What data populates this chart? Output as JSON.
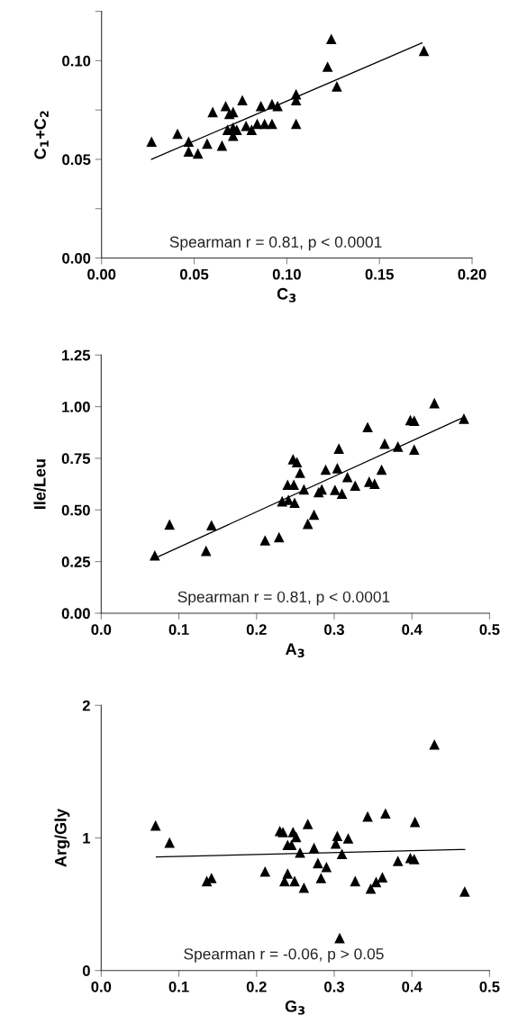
{
  "chart_data": [
    {
      "type": "scatter",
      "xlabel": "C$_{3}$",
      "ylabel": "C$_{1}$+C$_{2}$",
      "xlim": [
        0,
        0.2
      ],
      "ylim": [
        0,
        0.125
      ],
      "xticks": [
        {
          "value": 0,
          "label": "0.00"
        },
        {
          "value": 0.05,
          "label": "0.05"
        },
        {
          "value": 0.1,
          "label": "0.10"
        },
        {
          "value": 0.15,
          "label": "0.15"
        },
        {
          "value": 0.2,
          "label": "0.20"
        }
      ],
      "yticks": [
        {
          "value": 0,
          "label": "0.00"
        },
        {
          "value": 0.025,
          "label": null
        },
        {
          "value": 0.05,
          "label": "0.05"
        },
        {
          "value": 0.075,
          "label": null
        },
        {
          "value": 0.1,
          "label": "0.10"
        },
        {
          "value": 0.125,
          "label": null
        }
      ],
      "annotations": [
        "Spearman r = 0.81, p < 0.0001"
      ],
      "series": [
        {
          "marker": "triangle",
          "color": "#000000",
          "x": [
            0.027,
            0.041,
            0.047,
            0.047,
            0.052,
            0.057,
            0.065,
            0.06,
            0.067,
            0.069,
            0.071,
            0.076,
            0.068,
            0.071,
            0.073,
            0.071,
            0.078,
            0.081,
            0.084,
            0.088,
            0.092,
            0.086,
            0.092,
            0.095,
            0.105,
            0.105,
            0.105,
            0.122,
            0.124,
            0.127,
            0.174
          ],
          "values": [
            0.059,
            0.063,
            0.059,
            0.054,
            0.053,
            0.058,
            0.057,
            0.074,
            0.077,
            0.073,
            0.074,
            0.08,
            0.065,
            0.066,
            0.065,
            0.062,
            0.067,
            0.065,
            0.068,
            0.068,
            0.068,
            0.077,
            0.078,
            0.077,
            0.083,
            0.08,
            0.068,
            0.097,
            0.111,
            0.087,
            0.105
          ]
        },
        {
          "type": "line",
          "color": "#000000",
          "x": [
            0.027,
            0.173
          ],
          "values": [
            0.05,
            0.109
          ]
        }
      ]
    },
    {
      "type": "scatter",
      "xlabel": "A$_{3}$",
      "ylabel": "Ile/Leu",
      "xlim": [
        0,
        0.5
      ],
      "ylim": [
        0,
        1.25
      ],
      "xticks": [
        {
          "value": 0,
          "label": "0.0"
        },
        0.1,
        0.2,
        0.3,
        0.4,
        0.5
      ],
      "yticks": [
        {
          "value": 0,
          "label": "0.00"
        },
        0.25,
        {
          "value": 0.5,
          "label": "0.50"
        },
        0.75,
        {
          "value": 1,
          "label": "1.00"
        },
        1.25
      ],
      "annotations": [
        "Spearman r = 0.81, p < 0.0001"
      ],
      "series": [
        {
          "marker": "triangle",
          "color": "#000000",
          "x": [
            0.069,
            0.088,
            0.142,
            0.135,
            0.211,
            0.229,
            0.247,
            0.252,
            0.256,
            0.24,
            0.248,
            0.233,
            0.241,
            0.249,
            0.261,
            0.266,
            0.274,
            0.28,
            0.284,
            0.289,
            0.304,
            0.306,
            0.301,
            0.31,
            0.317,
            0.327,
            0.343,
            0.345,
            0.352,
            0.361,
            0.365,
            0.382,
            0.398,
            0.403,
            0.403,
            0.429,
            0.467
          ],
          "values": [
            0.28,
            0.43,
            0.426,
            0.302,
            0.353,
            0.368,
            0.746,
            0.731,
            0.68,
            0.622,
            0.622,
            0.542,
            0.549,
            0.535,
            0.6,
            0.433,
            0.477,
            0.586,
            0.6,
            0.695,
            0.702,
            0.797,
            0.597,
            0.579,
            0.659,
            0.618,
            0.901,
            0.637,
            0.627,
            0.695,
            0.821,
            0.807,
            0.935,
            0.932,
            0.792,
            1.017,
            0.942
          ]
        },
        {
          "type": "line",
          "color": "#000000",
          "x": [
            0.073,
            0.467
          ],
          "values": [
            0.273,
            0.949
          ]
        }
      ]
    },
    {
      "type": "scatter",
      "xlabel": "G$_{3}$",
      "ylabel": "Arg/Gly",
      "xlim": [
        0,
        0.5
      ],
      "ylim": [
        0,
        2
      ],
      "xticks": [
        {
          "value": 0,
          "label": "0.0"
        },
        0.1,
        0.2,
        0.3,
        0.4,
        0.5
      ],
      "yticks": [
        0,
        1,
        2
      ],
      "annotations": [
        "Spearman r = -0.06, p > 0.05"
      ],
      "series": [
        {
          "marker": "triangle",
          "color": "#000000",
          "x": [
            0.07,
            0.088,
            0.136,
            0.142,
            0.211,
            0.23,
            0.234,
            0.247,
            0.251,
            0.24,
            0.245,
            0.256,
            0.266,
            0.274,
            0.24,
            0.236,
            0.249,
            0.261,
            0.279,
            0.29,
            0.283,
            0.304,
            0.302,
            0.318,
            0.31,
            0.307,
            0.327,
            0.343,
            0.347,
            0.354,
            0.362,
            0.366,
            0.382,
            0.398,
            0.403,
            0.404,
            0.429,
            0.468
          ],
          "values": [
            1.094,
            0.965,
            0.675,
            0.698,
            0.747,
            1.053,
            1.044,
            1.044,
            1.008,
            0.947,
            0.947,
            0.89,
            1.105,
            0.924,
            0.732,
            0.675,
            0.675,
            0.625,
            0.811,
            0.781,
            0.698,
            1.015,
            0.958,
            0.997,
            0.879,
            0.245,
            0.675,
            1.162,
            0.618,
            0.668,
            0.704,
            1.185,
            0.827,
            0.849,
            0.84,
            1.121,
            1.705,
            0.596
          ]
        },
        {
          "type": "line",
          "color": "#000000",
          "x": [
            0.071,
            0.468
          ],
          "values": [
            0.856,
            0.913
          ]
        }
      ]
    }
  ]
}
